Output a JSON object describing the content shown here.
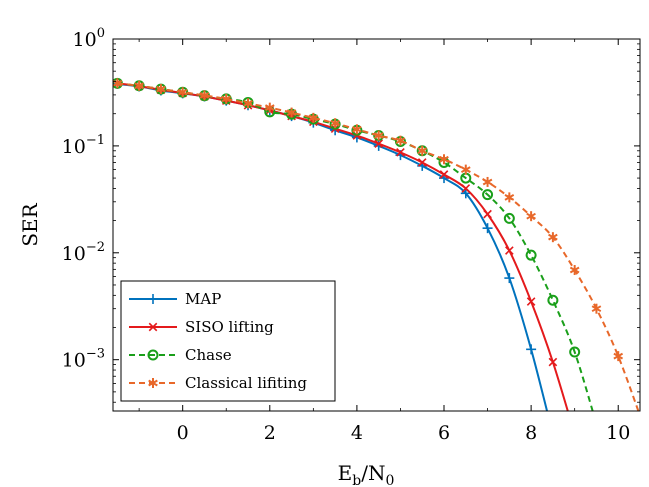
{
  "chart_data": {
    "type": "line",
    "xlabel": "E_b/N_0",
    "ylabel": "SER",
    "xlim": [
      -1.6,
      10.5
    ],
    "ylim_log10": [
      -3.48,
      0
    ],
    "yscale": "log",
    "grid": false,
    "legend_position": "bottom-left",
    "x_ticks": [
      0,
      2,
      4,
      6,
      8,
      10
    ],
    "x_tick_labels": [
      "0",
      "2",
      "4",
      "6",
      "8",
      "10"
    ],
    "y_tick_labels": [
      {
        "base": "10",
        "exp": "0"
      },
      {
        "base": "10",
        "exp": "−1"
      },
      {
        "base": "10",
        "exp": "−2"
      },
      {
        "base": "10",
        "exp": "−3"
      }
    ],
    "series": [
      {
        "name": "MAP",
        "color": "#0072bd",
        "dash": "solid",
        "marker": "plus",
        "x": [
          -1.5,
          -1.0,
          -0.5,
          0.0,
          0.5,
          1.0,
          1.5,
          2.0,
          2.5,
          3.0,
          3.5,
          4.0,
          4.5,
          5.0,
          5.5,
          6.0,
          6.5,
          7.0,
          7.5,
          8.0,
          8.5
        ],
        "y": [
          0.38,
          0.36,
          0.33,
          0.31,
          0.29,
          0.265,
          0.24,
          0.215,
          0.19,
          0.165,
          0.14,
          0.12,
          0.1,
          0.082,
          0.065,
          0.05,
          0.036,
          0.017,
          0.0058,
          0.00125,
          0.0002
        ]
      },
      {
        "name": "SISO lifting",
        "color": "#e41a1c",
        "dash": "solid",
        "marker": "x",
        "x": [
          -1.5,
          -1.0,
          -0.5,
          0.0,
          0.5,
          1.0,
          1.5,
          2.0,
          2.5,
          3.0,
          3.5,
          4.0,
          4.5,
          5.0,
          5.5,
          6.0,
          6.5,
          7.0,
          7.5,
          8.0,
          8.5,
          9.0
        ],
        "y": [
          0.385,
          0.362,
          0.335,
          0.312,
          0.29,
          0.265,
          0.24,
          0.215,
          0.19,
          0.168,
          0.145,
          0.125,
          0.105,
          0.087,
          0.07,
          0.054,
          0.04,
          0.023,
          0.0105,
          0.0035,
          0.00095,
          0.0002
        ]
      },
      {
        "name": "Chase",
        "color": "#1a9f1a",
        "dash": "dashed",
        "marker": "circle",
        "x": [
          -1.5,
          -1.0,
          -0.5,
          0.0,
          0.5,
          1.0,
          1.5,
          2.0,
          2.5,
          3.0,
          3.5,
          4.0,
          4.5,
          5.0,
          5.5,
          6.0,
          6.5,
          7.0,
          7.5,
          8.0,
          8.5,
          9.0,
          9.5
        ],
        "y": [
          0.385,
          0.365,
          0.34,
          0.318,
          0.295,
          0.275,
          0.255,
          0.208,
          0.198,
          0.178,
          0.16,
          0.14,
          0.125,
          0.11,
          0.09,
          0.07,
          0.05,
          0.035,
          0.021,
          0.0095,
          0.0036,
          0.00118,
          0.00025
        ]
      },
      {
        "name": "Classical lifiting",
        "color": "#e8682a",
        "dash": "dashed",
        "marker": "asterisk",
        "x": [
          -1.5,
          -1.0,
          -0.5,
          0.0,
          0.5,
          1.0,
          1.5,
          2.0,
          2.5,
          3.0,
          3.5,
          4.0,
          4.5,
          5.0,
          5.5,
          6.0,
          6.5,
          7.0,
          7.5,
          8.0,
          8.5,
          9.0,
          9.5,
          10.0,
          10.5
        ],
        "y": [
          0.385,
          0.365,
          0.34,
          0.318,
          0.297,
          0.275,
          0.25,
          0.228,
          0.205,
          0.183,
          0.163,
          0.143,
          0.125,
          0.112,
          0.09,
          0.075,
          0.06,
          0.046,
          0.033,
          0.022,
          0.014,
          0.0069,
          0.003,
          0.00108,
          0.0003
        ]
      }
    ]
  }
}
